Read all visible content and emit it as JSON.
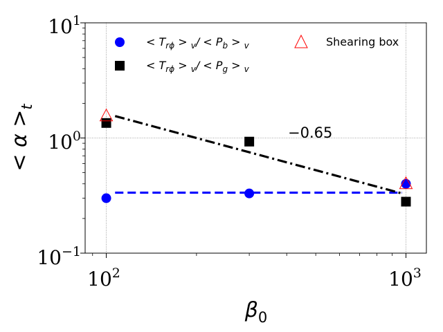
{
  "chart_data": {
    "type": "scatter",
    "title": "",
    "xlabel": "β",
    "xlabel_sub": "0",
    "ylabel": "< α >",
    "ylabel_sub": "t",
    "xscale": "log",
    "yscale": "log",
    "xlim": [
      85,
      1170
    ],
    "ylim": [
      0.1,
      10
    ],
    "x_ticks": [
      {
        "value": 100,
        "base": "10",
        "exp": "2"
      },
      {
        "value": 1000,
        "base": "10",
        "exp": "3"
      }
    ],
    "y_ticks": [
      {
        "value": 0.1,
        "base": "10",
        "exp": "−1"
      },
      {
        "value": 1,
        "base": "10",
        "exp": "0"
      },
      {
        "value": 10,
        "base": "10",
        "exp": "1"
      }
    ],
    "grid": "major, dotted",
    "series": [
      {
        "name": "<T_rφ>_v/<P_b>_v",
        "marker": "circle",
        "color": "#0000ff",
        "x": [
          100,
          300,
          1000
        ],
        "y": [
          0.3,
          0.33,
          0.4
        ]
      },
      {
        "name": "<T_rφ>_v/<P_g>_v",
        "marker": "square",
        "color": "#000000",
        "x": [
          100,
          300,
          1000
        ],
        "y": [
          1.35,
          0.93,
          0.28
        ]
      },
      {
        "name": "Shearing box",
        "marker": "triangle-open",
        "color": "#ff0000",
        "x": [
          100,
          1000
        ],
        "y": [
          1.55,
          0.4
        ]
      }
    ],
    "fit_lines": [
      {
        "name": "magnetic fit",
        "style": "dashed",
        "color": "#0000ff",
        "x": [
          107,
          970
        ],
        "y": [
          0.335,
          0.335
        ]
      },
      {
        "name": "gas fit",
        "style": "dashdot",
        "color": "#000000",
        "x": [
          107,
          970
        ],
        "y": [
          1.55,
          0.33
        ]
      }
    ],
    "annotations": [
      {
        "text": "−0.65",
        "x": 520,
        "y": 1.06
      }
    ],
    "legend": {
      "position": "top",
      "entries": [
        {
          "series": 0,
          "main": "< T",
          "sub": "rϕ",
          "mid": " > ",
          "sub2": "v",
          "mid2": "/ < P",
          "sub3": "b",
          "mid3": " > ",
          "sub4": "v"
        },
        {
          "series": 1,
          "main": "< T",
          "sub": "rϕ",
          "mid": " > ",
          "sub2": "v",
          "mid2": "/ < P",
          "sub3": "g",
          "mid3": " > ",
          "sub4": "v"
        },
        {
          "series": 2,
          "label": "Shearing box"
        }
      ]
    }
  }
}
